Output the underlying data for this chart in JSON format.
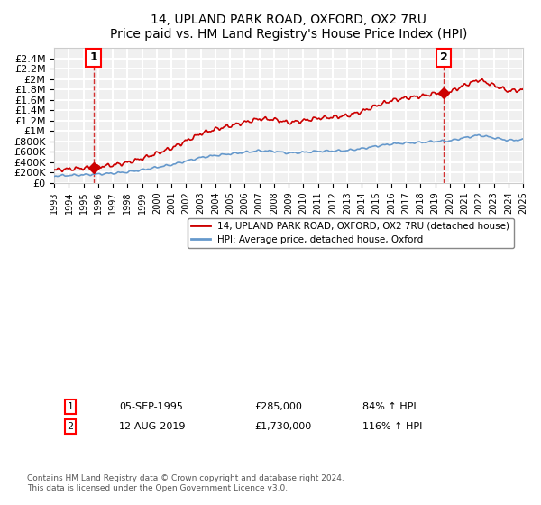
{
  "title": "14, UPLAND PARK ROAD, OXFORD, OX2 7RU",
  "subtitle": "Price paid vs. HM Land Registry's House Price Index (HPI)",
  "footer": "Contains HM Land Registry data © Crown copyright and database right 2024.\nThis data is licensed under the Open Government Licence v3.0.",
  "legend_line1": "14, UPLAND PARK ROAD, OXFORD, OX2 7RU (detached house)",
  "legend_line2": "HPI: Average price, detached house, Oxford",
  "annotation1": {
    "label": "1",
    "date": "05-SEP-1995",
    "price": "£285,000",
    "hpi": "84% ↑ HPI"
  },
  "annotation2": {
    "label": "2",
    "date": "12-AUG-2019",
    "price": "£1,730,000",
    "hpi": "116% ↑ HPI"
  },
  "ylim": [
    0,
    2600000
  ],
  "yticks": [
    0,
    200000,
    400000,
    600000,
    800000,
    1000000,
    1200000,
    1400000,
    1600000,
    1800000,
    2000000,
    2200000,
    2400000
  ],
  "ytick_labels": [
    "£0",
    "£200K",
    "£400K",
    "£600K",
    "£800K",
    "£1M",
    "£1.2M",
    "£1.4M",
    "£1.6M",
    "£1.8M",
    "£2M",
    "£2.2M",
    "£2.4M"
  ],
  "hpi_color": "#6699cc",
  "price_color": "#cc0000",
  "background_color": "#f0f0f0",
  "grid_color": "#ffffff",
  "annotation_vline_color": "#cc0000",
  "marker1_x": 1995.67,
  "marker1_y": 285000,
  "marker2_x": 2019.6,
  "marker2_y": 1730000,
  "xmin": 1993,
  "xmax": 2025,
  "xtick_years": [
    1993,
    1994,
    1995,
    1996,
    1997,
    1998,
    1999,
    2000,
    2001,
    2002,
    2003,
    2004,
    2005,
    2006,
    2007,
    2008,
    2009,
    2010,
    2011,
    2012,
    2013,
    2014,
    2015,
    2016,
    2017,
    2018,
    2019,
    2020,
    2021,
    2022,
    2023,
    2024,
    2025
  ]
}
